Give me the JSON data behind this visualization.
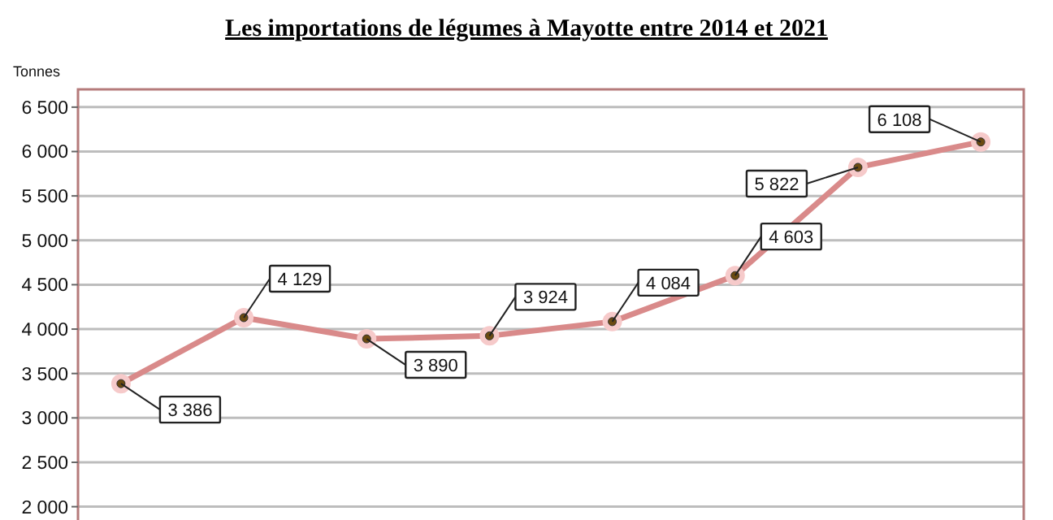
{
  "chart_data": {
    "type": "line",
    "title": "Les importations de légumes à Mayotte entre 2014 et 2021",
    "ylabel": "Tonnes",
    "categories": [
      null,
      null,
      null,
      null,
      null,
      null,
      null,
      null
    ],
    "series": [
      {
        "color": "#d98a8a",
        "values": [
          3386,
          4129,
          3890,
          3924,
          4084,
          4603,
          5822,
          6108
        ],
        "value_labels": [
          "3 386",
          "4 129",
          "3 890",
          "3 924",
          "4 084",
          "4 603",
          "5 822",
          "6 108"
        ]
      }
    ],
    "ylim": [
      1850,
      6700
    ],
    "yticks": [
      {
        "value": 2000,
        "label": "2 000"
      },
      {
        "value": 2500,
        "label": "2 500"
      },
      {
        "value": 3000,
        "label": "3 000"
      },
      {
        "value": 3500,
        "label": "3 500"
      },
      {
        "value": 4000,
        "label": "4 000"
      },
      {
        "value": 4500,
        "label": "4 500"
      },
      {
        "value": 5000,
        "label": "5 000"
      },
      {
        "value": 5500,
        "label": "5 500"
      },
      {
        "value": 6000,
        "label": "6 000"
      },
      {
        "value": 6500,
        "label": "6 500"
      }
    ],
    "grid": "y",
    "marker": "circle",
    "line_style": "solid"
  }
}
